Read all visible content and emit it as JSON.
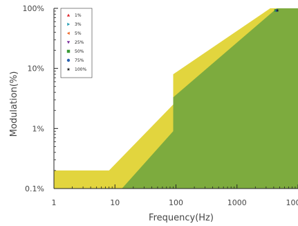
{
  "chart_data": {
    "type": "area",
    "xlabel": "Frequency(Hz)",
    "ylabel": "Modulation(%)",
    "x_scale": "log",
    "y_scale": "log",
    "xlim": [
      1,
      10000
    ],
    "ylim": [
      0.1,
      100
    ],
    "x_ticks": [
      1,
      10,
      100,
      1000,
      10000
    ],
    "x_tick_labels": [
      "1",
      "10",
      "100",
      "1000",
      "10000"
    ],
    "y_ticks": [
      0.1,
      1,
      10,
      100
    ],
    "y_tick_labels": [
      "0.1%",
      "1%",
      "10%",
      "100%"
    ],
    "grid": false,
    "legend_position": "top-left",
    "colors": {
      "low_risk_band": "#e2d53e",
      "no_effect_region": "#7dab3e"
    },
    "regions": [
      {
        "role": "upper band (yellow)",
        "points": [
          [
            1,
            0.2
          ],
          [
            8,
            0.2
          ],
          [
            90,
            2.5
          ],
          [
            90,
            8
          ],
          [
            3500,
            100
          ],
          [
            10000,
            100
          ]
        ]
      },
      {
        "role": "lower region (green)",
        "points": [
          [
            13,
            0.1
          ],
          [
            90,
            0.9
          ],
          [
            90,
            3.3
          ],
          [
            4500,
            100
          ],
          [
            10000,
            100
          ]
        ]
      }
    ],
    "series": [
      {
        "name": "1%",
        "marker": "triangle-up",
        "color": "#e0282e",
        "points": []
      },
      {
        "name": "3%",
        "marker": "triangle-right",
        "color": "#2a9fb5",
        "points": []
      },
      {
        "name": "5%",
        "marker": "triangle-left",
        "color": "#f06a2a",
        "points": []
      },
      {
        "name": "25%",
        "marker": "triangle-down",
        "color": "#7b2f9b",
        "points": []
      },
      {
        "name": "50%",
        "marker": "square",
        "color": "#3a9a35",
        "points": [
          [
            4300,
            92
          ]
        ]
      },
      {
        "name": "75%",
        "marker": "circle",
        "color": "#2b62b0",
        "points": [
          [
            4500,
            92
          ]
        ]
      },
      {
        "name": "100%",
        "marker": "star",
        "color": "#222222",
        "points": [
          [
            4600,
            92
          ]
        ]
      }
    ]
  }
}
